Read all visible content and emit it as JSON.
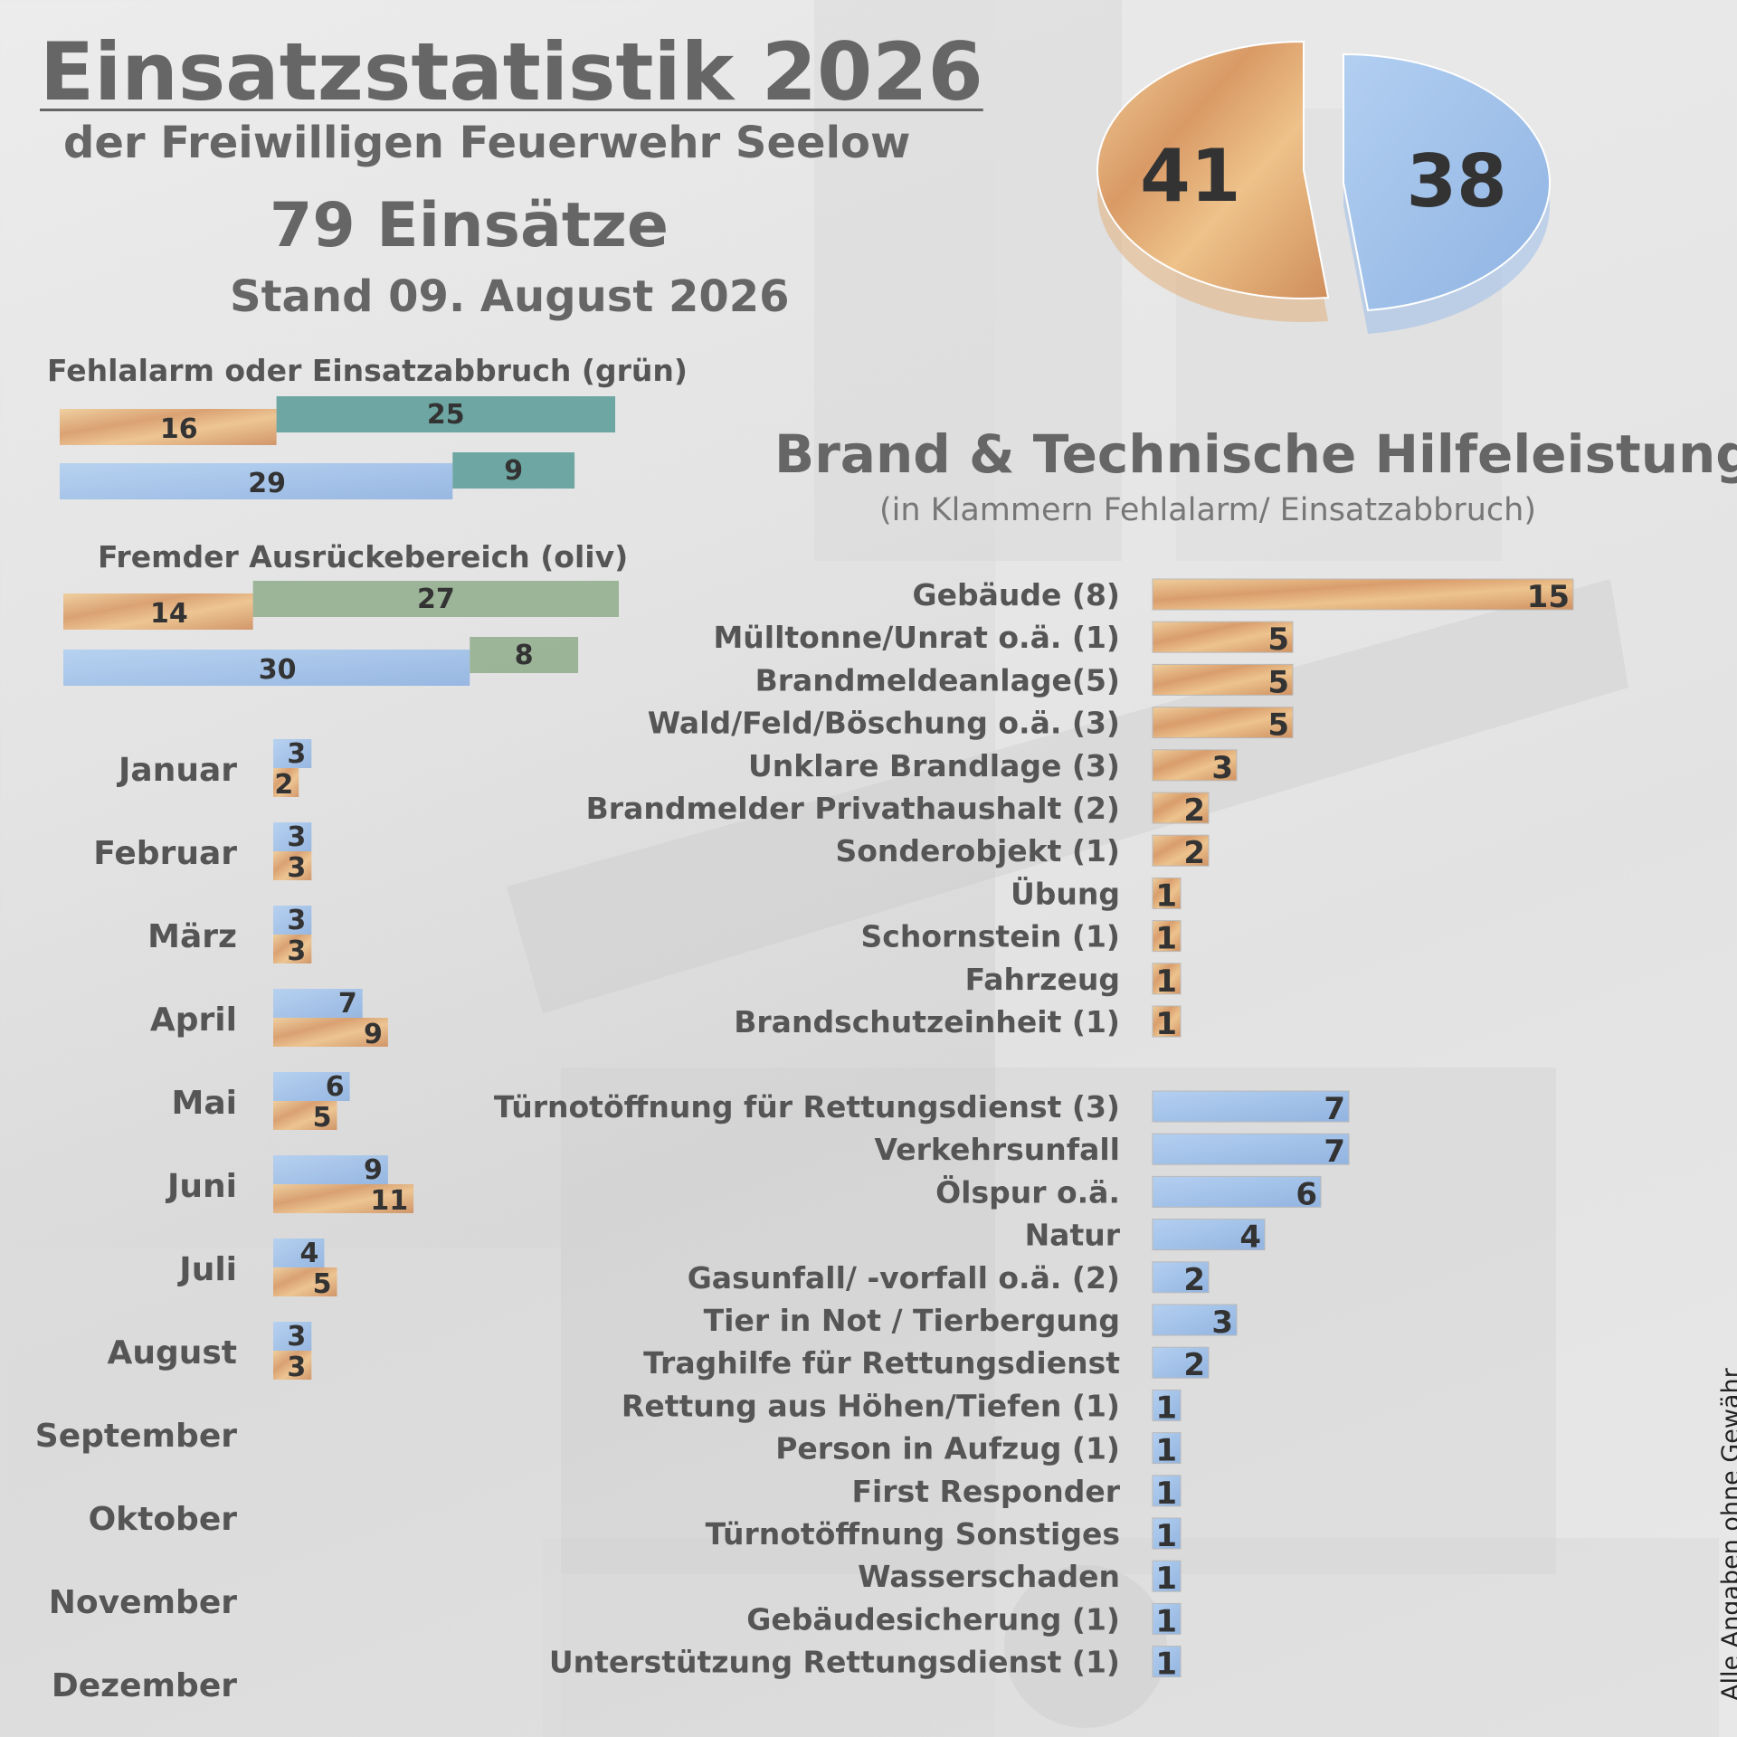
{
  "header": {
    "title": "Einsatzstatistik 2026",
    "subtitle": "der Freiwilligen Feuerwehr Seelow",
    "total": "79 Einsätze",
    "stand": "Stand 09. August 2026"
  },
  "colors": {
    "brand": "#e2b07c",
    "th": "#9fc0ea",
    "gruen": "#5f9f9a",
    "oliv": "#93ae8e"
  },
  "chart_data": [
    {
      "type": "pie",
      "slices": [
        {
          "label": "41",
          "value": 41,
          "color": "#e2b07c"
        },
        {
          "label": "38",
          "value": 38,
          "color": "#9fc0ea"
        }
      ]
    },
    {
      "type": "bar",
      "title": "Fehlalarm oder Einsatzabbruch (grün)",
      "rows": [
        {
          "main": 16,
          "extra": 25,
          "main_color": "#e2b07c",
          "extra_color": "#5f9f9a"
        },
        {
          "main": 29,
          "extra": 9,
          "main_color": "#9fc0ea",
          "extra_color": "#5f9f9a"
        }
      ]
    },
    {
      "type": "bar",
      "title": "Fremder Ausrückebereich (oliv)",
      "rows": [
        {
          "main": 14,
          "extra": 27,
          "main_color": "#e2b07c",
          "extra_color": "#93ae8e"
        },
        {
          "main": 30,
          "extra": 8,
          "main_color": "#9fc0ea",
          "extra_color": "#93ae8e"
        }
      ]
    },
    {
      "type": "bar",
      "months": [
        "Januar",
        "Februar",
        "März",
        "April",
        "Mai",
        "Juni",
        "Juli",
        "August",
        "September",
        "Oktober",
        "November",
        "Dezember"
      ],
      "series": [
        {
          "values": [
            3,
            3,
            3,
            7,
            6,
            9,
            4,
            3,
            null,
            null,
            null,
            null
          ],
          "color": "#9fc0ea"
        },
        {
          "values": [
            2,
            3,
            3,
            9,
            5,
            11,
            5,
            3,
            null,
            null,
            null,
            null
          ],
          "color": "#e2b07c"
        }
      ]
    },
    {
      "type": "bar",
      "title": "Brand & Technische Hilfeleistung",
      "subtitle": "(in Klammern Fehlalarm/ Einsatzabbruch)",
      "brand": [
        {
          "label": "Gebäude (8)",
          "value": 15
        },
        {
          "label": "Mülltonne/Unrat o.ä. (1)",
          "value": 5
        },
        {
          "label": "Brandmeldeanlage(5)",
          "value": 5
        },
        {
          "label": "Wald/Feld/Böschung o.ä. (3)",
          "value": 5
        },
        {
          "label": "Unklare Brandlage (3)",
          "value": 3
        },
        {
          "label": "Brandmelder Privathaushalt (2)",
          "value": 2
        },
        {
          "label": "Sonderobjekt (1)",
          "value": 2
        },
        {
          "label": "Übung",
          "value": 1
        },
        {
          "label": "Schornstein (1)",
          "value": 1
        },
        {
          "label": "Fahrzeug",
          "value": 1
        },
        {
          "label": "Brandschutzeinheit (1)",
          "value": 1
        }
      ],
      "th": [
        {
          "label": "Türnotöffnung für Rettungsdienst (3)",
          "value": 7
        },
        {
          "label": "Verkehrsunfall",
          "value": 7
        },
        {
          "label": "Ölspur o.ä.",
          "value": 6
        },
        {
          "label": "Natur",
          "value": 4
        },
        {
          "label": "Gasunfall/ -vorfall o.ä. (2)",
          "value": 2
        },
        {
          "label": "Tier in Not / Tierbergung",
          "value": 3
        },
        {
          "label": "Traghilfe für Rettungsdienst",
          "value": 2
        },
        {
          "label": "Rettung aus Höhen/Tiefen (1)",
          "value": 1
        },
        {
          "label": "Person in Aufzug (1)",
          "value": 1
        },
        {
          "label": "First Responder",
          "value": 1
        },
        {
          "label": "Türnotöffnung Sonstiges",
          "value": 1
        },
        {
          "label": "Wasserschaden",
          "value": 1
        },
        {
          "label": "Gebäudesicherung (1)",
          "value": 1
        },
        {
          "label": "Unterstützung Rettungsdienst (1)",
          "value": 1
        }
      ]
    }
  ],
  "footer": {
    "disclaimer": "Alle Angaben ohne Gewähr"
  }
}
